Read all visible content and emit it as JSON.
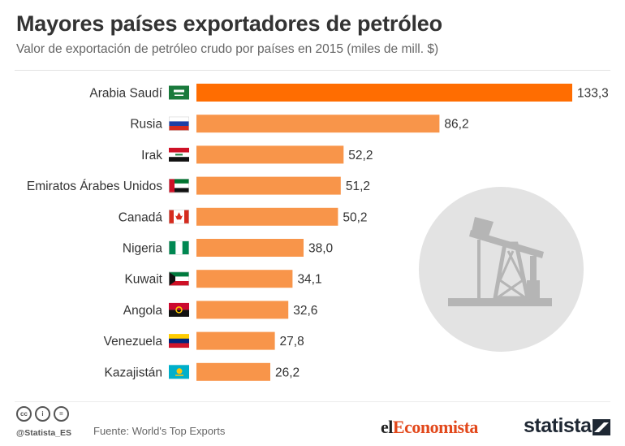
{
  "header": {
    "title": "Mayores países exportadores de petróleo",
    "subtitle": "Valor de exportación de petróleo crudo por países en 2015 (miles de mill. $)"
  },
  "chart_data": {
    "type": "bar",
    "orientation": "horizontal",
    "title": "Mayores países exportadores de petróleo",
    "subtitle": "Valor de exportación de petróleo crudo por países en 2015 (miles de mill. $)",
    "categories": [
      "Arabia Saudí",
      "Rusia",
      "Irak",
      "Emiratos Árabes Unidos",
      "Canadá",
      "Nigeria",
      "Kuwait",
      "Angola",
      "Venezuela",
      "Kazajistán"
    ],
    "values": [
      133.3,
      86.2,
      52.2,
      51.2,
      50.2,
      38.0,
      34.1,
      32.6,
      27.8,
      26.2
    ],
    "value_labels": [
      "133,3",
      "86,2",
      "52,2",
      "51,2",
      "50,2",
      "38,0",
      "34,1",
      "32,6",
      "27,8",
      "26,2"
    ],
    "flag_icons": [
      "saudi-arabia-flag-icon",
      "russia-flag-icon",
      "iraq-flag-icon",
      "uae-flag-icon",
      "canada-flag-icon",
      "nigeria-flag-icon",
      "kuwait-flag-icon",
      "angola-flag-icon",
      "venezuela-flag-icon",
      "kazakhstan-flag-icon"
    ],
    "highlight_index": 0,
    "xlim": [
      0,
      133.3
    ],
    "grid": false,
    "colors": {
      "bar": "#f8954a",
      "highlight": "#ff6d01"
    }
  },
  "footer": {
    "license_icons": [
      "cc-icon",
      "attribution-icon",
      "no-derivatives-icon"
    ],
    "license_labels": [
      "cc",
      "i",
      "="
    ],
    "handle": "@Statista_ES",
    "source": "Fuente: World's Top Exports",
    "partner_logo_prefix": "el",
    "partner_logo_main": "Economista",
    "brand": "statista"
  },
  "decoration": {
    "icon": "oil-pump-icon"
  }
}
